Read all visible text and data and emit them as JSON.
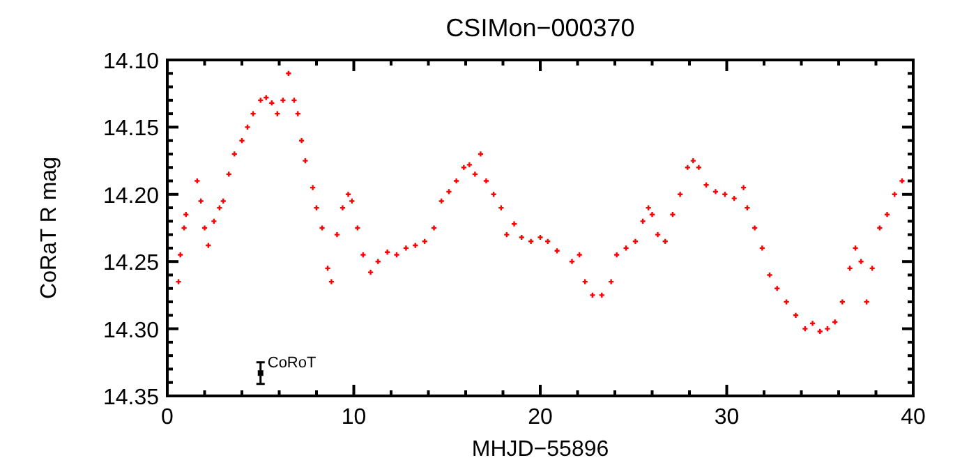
{
  "chart_data": {
    "type": "scatter",
    "title": "CSIMon−000370",
    "xlabel": "MHJD−55896",
    "ylabel": "CoRaT R mag",
    "marker": "cross",
    "xlim": [
      0,
      40
    ],
    "ylim": [
      14.35,
      14.1
    ],
    "xticks": [
      0,
      {
        "value": 2,
        "label": null
      },
      {
        "value": 4,
        "label": null
      },
      {
        "value": 6,
        "label": null
      },
      {
        "value": 8,
        "label": null
      },
      10,
      {
        "value": 12,
        "label": null
      },
      {
        "value": 14,
        "label": null
      },
      {
        "value": 16,
        "label": null
      },
      {
        "value": 18,
        "label": null
      },
      20,
      {
        "value": 22,
        "label": null
      },
      {
        "value": 24,
        "label": null
      },
      {
        "value": 26,
        "label": null
      },
      {
        "value": 28,
        "label": null
      },
      30,
      {
        "value": 32,
        "label": null
      },
      {
        "value": 34,
        "label": null
      },
      {
        "value": 36,
        "label": null
      },
      {
        "value": 38,
        "label": null
      },
      40
    ],
    "yticks": [
      {
        "value": 14.1,
        "label": "14.10"
      },
      {
        "value": 14.11,
        "label": null
      },
      {
        "value": 14.12,
        "label": null
      },
      {
        "value": 14.13,
        "label": null
      },
      {
        "value": 14.14,
        "label": null
      },
      {
        "value": 14.15,
        "label": "14.15"
      },
      {
        "value": 14.16,
        "label": null
      },
      {
        "value": 14.17,
        "label": null
      },
      {
        "value": 14.18,
        "label": null
      },
      {
        "value": 14.19,
        "label": null
      },
      {
        "value": 14.2,
        "label": "14.20"
      },
      {
        "value": 14.21,
        "label": null
      },
      {
        "value": 14.22,
        "label": null
      },
      {
        "value": 14.23,
        "label": null
      },
      {
        "value": 14.24,
        "label": null
      },
      {
        "value": 14.25,
        "label": "14.25"
      },
      {
        "value": 14.26,
        "label": null
      },
      {
        "value": 14.27,
        "label": null
      },
      {
        "value": 14.28,
        "label": null
      },
      {
        "value": 14.29,
        "label": null
      },
      {
        "value": 14.3,
        "label": "14.30"
      },
      {
        "value": 14.31,
        "label": null
      },
      {
        "value": 14.32,
        "label": null
      },
      {
        "value": 14.33,
        "label": null
      },
      {
        "value": 14.34,
        "label": null
      },
      {
        "value": 14.35,
        "label": "14.35"
      }
    ],
    "annotations": [
      {
        "text": "CoRoT",
        "x": 5,
        "y": 14.333
      }
    ],
    "series": [
      {
        "color": "#ff0000",
        "x": [
          0.6,
          0.7,
          0.9,
          1.0,
          1.6,
          1.8,
          2.0,
          2.2,
          2.5,
          2.8,
          3.0,
          3.3,
          3.6,
          4.0,
          4.3,
          4.6,
          5.0,
          5.3,
          5.6,
          5.9,
          6.2,
          6.5,
          6.8,
          7.0,
          7.2,
          7.4,
          7.8,
          8.0,
          8.3,
          8.6,
          8.8,
          9.1,
          9.4,
          9.7,
          9.9,
          10.2,
          10.5,
          10.9,
          11.3,
          11.8,
          12.3,
          12.8,
          13.3,
          13.8,
          14.3,
          14.7,
          15.1,
          15.5,
          15.9,
          16.2,
          16.5,
          16.8,
          17.1,
          17.5,
          17.9,
          18.2,
          18.6,
          19.0,
          19.5,
          20.0,
          20.4,
          20.9,
          21.7,
          22.1,
          22.4,
          22.8,
          23.3,
          23.8,
          24.1,
          24.6,
          25.1,
          25.5,
          25.8,
          26.0,
          26.3,
          26.7,
          27.1,
          27.5,
          27.9,
          28.2,
          28.5,
          28.9,
          29.4,
          29.9,
          30.4,
          30.9,
          31.1,
          31.5,
          31.9,
          32.3,
          32.7,
          33.2,
          33.7,
          34.2,
          34.6,
          35.0,
          35.4,
          35.8,
          36.2,
          36.6,
          36.9,
          37.2,
          37.5,
          37.8,
          38.2,
          38.6,
          39.0,
          39.4
        ],
        "values": [
          14.265,
          14.245,
          14.225,
          14.215,
          14.19,
          14.205,
          14.225,
          14.238,
          14.22,
          14.21,
          14.205,
          14.185,
          14.17,
          14.16,
          14.15,
          14.14,
          14.13,
          14.128,
          14.132,
          14.14,
          14.13,
          14.11,
          14.13,
          14.14,
          14.16,
          14.175,
          14.195,
          14.21,
          14.225,
          14.255,
          14.265,
          14.23,
          14.21,
          14.2,
          14.205,
          14.225,
          14.245,
          14.258,
          14.25,
          14.243,
          14.245,
          14.24,
          14.238,
          14.235,
          14.225,
          14.205,
          14.198,
          14.19,
          14.18,
          14.178,
          14.185,
          14.17,
          14.19,
          14.2,
          14.21,
          14.23,
          14.222,
          14.232,
          14.235,
          14.232,
          14.235,
          14.242,
          14.25,
          14.245,
          14.265,
          14.275,
          14.275,
          14.265,
          14.245,
          14.24,
          14.235,
          14.22,
          14.21,
          14.215,
          14.23,
          14.235,
          14.215,
          14.2,
          14.18,
          14.175,
          14.18,
          14.193,
          14.198,
          14.2,
          14.203,
          14.195,
          14.21,
          14.225,
          14.24,
          14.26,
          14.27,
          14.28,
          14.29,
          14.3,
          14.296,
          14.302,
          14.3,
          14.295,
          14.28,
          14.255,
          14.24,
          14.25,
          14.28,
          14.255,
          14.225,
          14.215,
          14.2,
          14.19
        ]
      },
      {
        "color": "#000000",
        "marker": "square",
        "x": [
          5
        ],
        "values": [
          14.333
        ],
        "errors": [
          0.008
        ]
      }
    ]
  }
}
